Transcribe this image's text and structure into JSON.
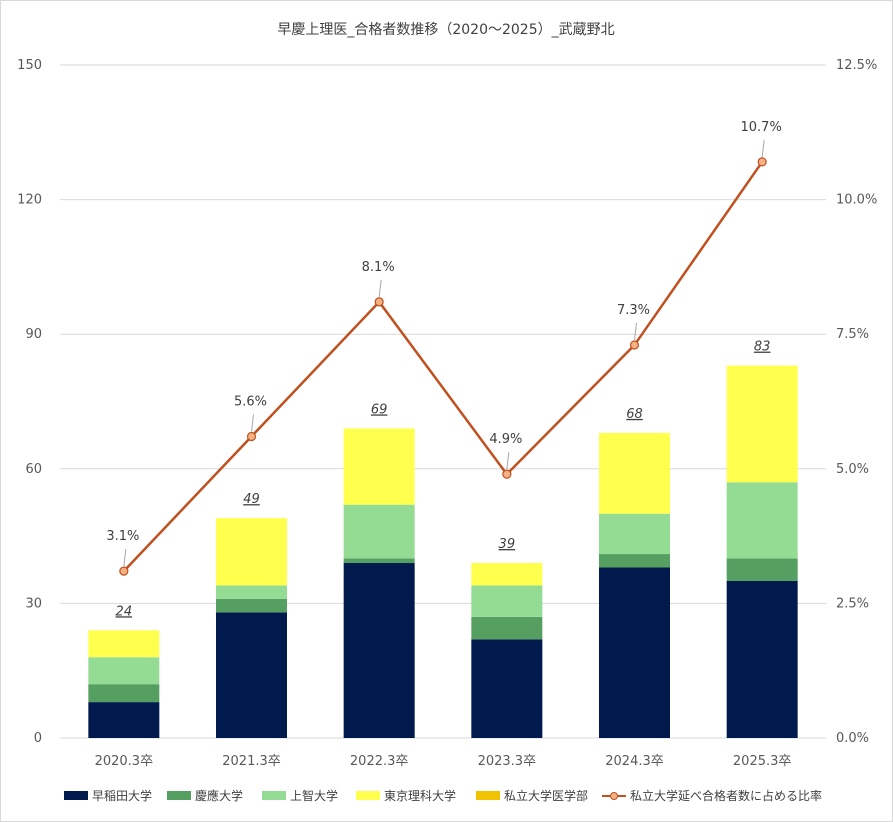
{
  "chart_data": {
    "type": "bar",
    "stacked": true,
    "title": "早慶上理医_合格者数推移（2020～2025）_武蔵野北",
    "categories": [
      "2020.3卒",
      "2021.3卒",
      "2022.3卒",
      "2023.3卒",
      "2024.3卒",
      "2025.3卒"
    ],
    "series": [
      {
        "name": "早稲田大学",
        "color": "#001a4d",
        "values": [
          8,
          28,
          39,
          22,
          38,
          35
        ]
      },
      {
        "name": "慶應大学",
        "color": "#55a060",
        "values": [
          4,
          3,
          1,
          5,
          3,
          5
        ]
      },
      {
        "name": "上智大学",
        "color": "#94dc94",
        "values": [
          6,
          3,
          12,
          7,
          9,
          17
        ]
      },
      {
        "name": "東京理科大学",
        "color": "#ffff4d",
        "values": [
          6,
          15,
          17,
          5,
          18,
          26
        ]
      },
      {
        "name": "私立大学医学部",
        "color": "#f2c200",
        "values": [
          0,
          0,
          0,
          0,
          0,
          0
        ]
      }
    ],
    "totals": [
      "24",
      "49",
      "69",
      "39",
      "68",
      "83"
    ],
    "line": {
      "name": "私立大学延べ合格者数に占める比率",
      "color": "#c0501f",
      "values": [
        3.1,
        5.6,
        8.1,
        4.9,
        7.3,
        10.7
      ],
      "labels": [
        "3.1%",
        "5.6%",
        "8.1%",
        "4.9%",
        "7.3%",
        "10.7%"
      ]
    },
    "ylim": [
      0,
      150
    ],
    "y_ticks": [
      "0",
      "30",
      "60",
      "90",
      "120",
      "150"
    ],
    "y2lim": [
      0,
      12.5
    ],
    "y2_ticks": [
      "0.0%",
      "2.5%",
      "5.0%",
      "7.5%",
      "10.0%",
      "12.5%"
    ],
    "grid": true,
    "legend": "bottom"
  }
}
